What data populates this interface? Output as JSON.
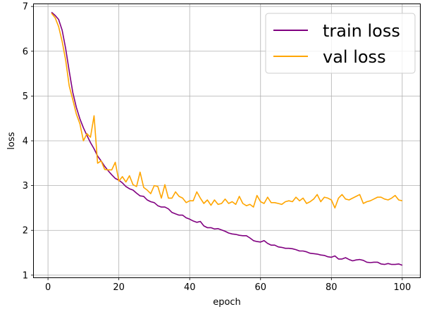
{
  "chart_data": {
    "type": "line",
    "xlabel": "epoch",
    "ylabel": "loss",
    "xlim": [
      -4,
      105
    ],
    "ylim": [
      0.95,
      7.05
    ],
    "xticks": [
      0,
      20,
      40,
      60,
      80,
      100
    ],
    "yticks": [
      1,
      2,
      3,
      4,
      5,
      6,
      7
    ],
    "grid": true,
    "legend_position": "top-right",
    "series": [
      {
        "name": "train loss",
        "color": "#800080",
        "x": [
          1,
          2,
          3,
          4,
          5,
          6,
          7,
          8,
          9,
          10,
          11,
          12,
          13,
          14,
          15,
          16,
          17,
          18,
          19,
          20,
          21,
          22,
          23,
          24,
          25,
          26,
          27,
          28,
          29,
          30,
          31,
          32,
          33,
          34,
          35,
          36,
          37,
          38,
          39,
          40,
          41,
          42,
          43,
          44,
          45,
          46,
          47,
          48,
          49,
          50,
          51,
          52,
          53,
          54,
          55,
          56,
          57,
          58,
          59,
          60,
          61,
          62,
          63,
          64,
          65,
          66,
          67,
          68,
          69,
          70,
          71,
          72,
          73,
          74,
          75,
          76,
          77,
          78,
          79,
          80,
          81,
          82,
          83,
          84,
          85,
          86,
          87,
          88,
          89,
          90,
          91,
          92,
          93,
          94,
          95,
          96,
          97,
          98,
          99,
          100
        ],
        "y": [
          6.87,
          6.8,
          6.71,
          6.47,
          6.06,
          5.55,
          5.08,
          4.75,
          4.49,
          4.29,
          4.12,
          3.96,
          3.82,
          3.66,
          3.55,
          3.43,
          3.33,
          3.24,
          3.16,
          3.12,
          3.06,
          2.98,
          2.93,
          2.9,
          2.83,
          2.77,
          2.76,
          2.68,
          2.64,
          2.62,
          2.55,
          2.52,
          2.52,
          2.48,
          2.4,
          2.37,
          2.34,
          2.34,
          2.28,
          2.25,
          2.21,
          2.18,
          2.2,
          2.1,
          2.06,
          2.06,
          2.03,
          2.04,
          2.01,
          1.98,
          1.94,
          1.92,
          1.91,
          1.89,
          1.88,
          1.88,
          1.83,
          1.77,
          1.75,
          1.74,
          1.77,
          1.71,
          1.67,
          1.67,
          1.63,
          1.62,
          1.6,
          1.6,
          1.59,
          1.57,
          1.54,
          1.54,
          1.52,
          1.49,
          1.48,
          1.47,
          1.45,
          1.44,
          1.41,
          1.4,
          1.43,
          1.36,
          1.36,
          1.39,
          1.35,
          1.32,
          1.34,
          1.35,
          1.33,
          1.29,
          1.28,
          1.29,
          1.29,
          1.25,
          1.24,
          1.26,
          1.24,
          1.24,
          1.25,
          1.22
        ]
      },
      {
        "name": "val loss",
        "color": "#ffa500",
        "x": [
          1,
          2,
          3,
          4,
          5,
          6,
          7,
          8,
          9,
          10,
          11,
          12,
          13,
          14,
          15,
          16,
          17,
          18,
          19,
          20,
          21,
          22,
          23,
          24,
          25,
          26,
          27,
          28,
          29,
          30,
          31,
          32,
          33,
          34,
          35,
          36,
          37,
          38,
          39,
          40,
          41,
          42,
          43,
          44,
          45,
          46,
          47,
          48,
          49,
          50,
          51,
          52,
          53,
          54,
          55,
          56,
          57,
          58,
          59,
          60,
          61,
          62,
          63,
          64,
          65,
          66,
          67,
          68,
          69,
          70,
          71,
          72,
          73,
          74,
          75,
          76,
          77,
          78,
          79,
          80,
          81,
          82,
          83,
          84,
          85,
          86,
          87,
          88,
          89,
          90,
          91,
          92,
          93,
          94,
          95,
          96,
          97,
          98,
          99,
          100
        ],
        "y": [
          6.85,
          6.75,
          6.55,
          6.22,
          5.8,
          5.22,
          4.92,
          4.6,
          4.38,
          4.0,
          4.16,
          4.08,
          4.56,
          3.5,
          3.55,
          3.36,
          3.35,
          3.35,
          3.52,
          3.1,
          3.2,
          3.08,
          3.22,
          3.02,
          2.98,
          3.3,
          2.96,
          2.9,
          2.82,
          3.0,
          2.98,
          2.72,
          3.02,
          2.72,
          2.72,
          2.86,
          2.76,
          2.72,
          2.62,
          2.66,
          2.66,
          2.86,
          2.72,
          2.6,
          2.68,
          2.56,
          2.68,
          2.58,
          2.6,
          2.7,
          2.6,
          2.64,
          2.58,
          2.76,
          2.6,
          2.55,
          2.58,
          2.52,
          2.78,
          2.64,
          2.6,
          2.74,
          2.62,
          2.62,
          2.6,
          2.58,
          2.64,
          2.66,
          2.64,
          2.74,
          2.66,
          2.72,
          2.6,
          2.64,
          2.7,
          2.8,
          2.64,
          2.74,
          2.72,
          2.68,
          2.5,
          2.72,
          2.8,
          2.7,
          2.68,
          2.72,
          2.76,
          2.8,
          2.6,
          2.64,
          2.66,
          2.7,
          2.74,
          2.74,
          2.7,
          2.68,
          2.72,
          2.78,
          2.68,
          2.66
        ]
      }
    ]
  }
}
